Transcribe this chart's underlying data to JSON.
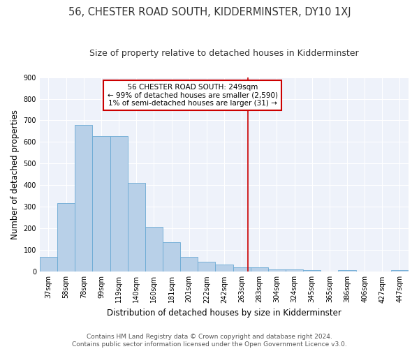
{
  "title": "56, CHESTER ROAD SOUTH, KIDDERMINSTER, DY10 1XJ",
  "subtitle": "Size of property relative to detached houses in Kidderminster",
  "xlabel": "Distribution of detached houses by size in Kidderminster",
  "ylabel": "Number of detached properties",
  "categories": [
    "37sqm",
    "58sqm",
    "78sqm",
    "99sqm",
    "119sqm",
    "140sqm",
    "160sqm",
    "181sqm",
    "201sqm",
    "222sqm",
    "242sqm",
    "263sqm",
    "283sqm",
    "304sqm",
    "324sqm",
    "345sqm",
    "365sqm",
    "386sqm",
    "406sqm",
    "427sqm",
    "447sqm"
  ],
  "values": [
    70,
    317,
    680,
    628,
    628,
    410,
    207,
    135,
    68,
    45,
    32,
    20,
    20,
    12,
    12,
    8,
    0,
    8,
    0,
    0,
    8
  ],
  "bar_color": "#b8d0e8",
  "bar_edge_color": "#6aaad4",
  "vline_x": 11.35,
  "annotation_text_line1": "56 CHESTER ROAD SOUTH: 249sqm",
  "annotation_text_line2": "← 99% of detached houses are smaller (2,590)",
  "annotation_text_line3": "1% of semi-detached houses are larger (31) →",
  "annotation_box_color": "#ffffff",
  "annotation_box_edge_color": "#cc0000",
  "vline_color": "#cc0000",
  "ylim": [
    0,
    900
  ],
  "yticks": [
    0,
    100,
    200,
    300,
    400,
    500,
    600,
    700,
    800,
    900
  ],
  "background_color": "#eef2fa",
  "footer_line1": "Contains HM Land Registry data © Crown copyright and database right 2024.",
  "footer_line2": "Contains public sector information licensed under the Open Government Licence v3.0.",
  "title_fontsize": 10.5,
  "subtitle_fontsize": 9,
  "axis_label_fontsize": 8.5,
  "tick_fontsize": 7,
  "annotation_fontsize": 7.5,
  "footer_fontsize": 6.5
}
